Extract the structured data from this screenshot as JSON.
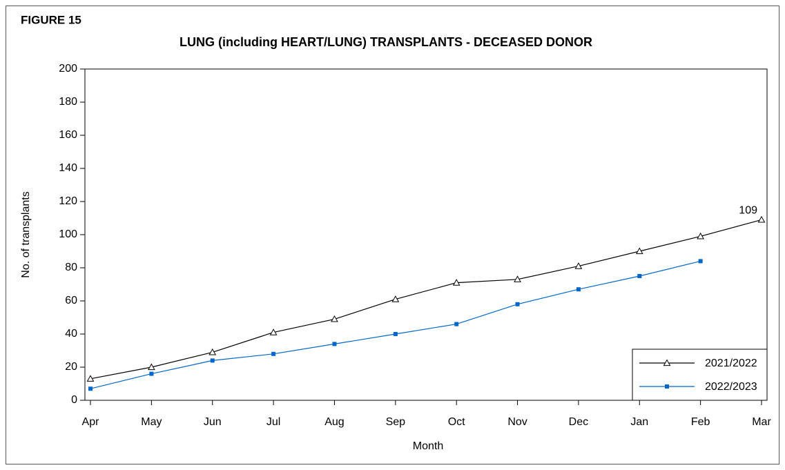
{
  "chart_data": {
    "type": "line",
    "figure_label": "FIGURE 15",
    "title": "LUNG (including HEART/LUNG) TRANSPLANTS - DECEASED DONOR",
    "x_label": "Month",
    "y_label": "No. of transplants",
    "categories": [
      "Apr",
      "May",
      "Jun",
      "Jul",
      "Aug",
      "Sep",
      "Oct",
      "Nov",
      "Dec",
      "Jan",
      "Feb",
      "Mar"
    ],
    "series": [
      {
        "name": "2021/2022",
        "color": "#000000",
        "marker": "triangle-open",
        "label_last": true,
        "values": [
          13,
          20,
          29,
          41,
          49,
          61,
          71,
          73,
          81,
          90,
          99,
          109
        ]
      },
      {
        "name": "2022/2023",
        "color": "#0066cc",
        "marker": "square-filled",
        "label_last": false,
        "values": [
          7,
          16,
          24,
          28,
          34,
          40,
          46,
          58,
          67,
          75,
          84,
          null
        ]
      }
    ],
    "ylim": [
      0,
      200
    ],
    "yticks": [
      0,
      20,
      40,
      60,
      80,
      100,
      120,
      140,
      160,
      180,
      200
    ],
    "grid": false,
    "legend": "lower right"
  }
}
